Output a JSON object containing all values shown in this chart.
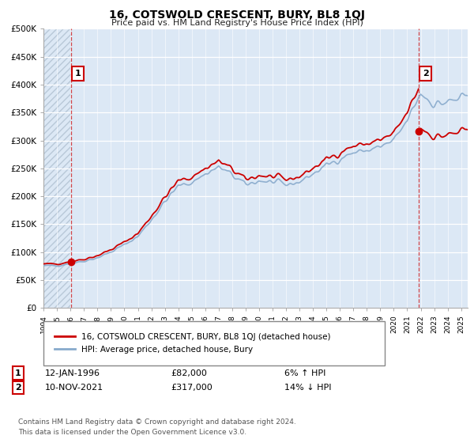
{
  "title": "16, COTSWOLD CRESCENT, BURY, BL8 1QJ",
  "subtitle": "Price paid vs. HM Land Registry's House Price Index (HPI)",
  "legend_line1": "16, COTSWOLD CRESCENT, BURY, BL8 1QJ (detached house)",
  "legend_line2": "HPI: Average price, detached house, Bury",
  "annotation1_label": "1",
  "annotation1_date": "12-JAN-1996",
  "annotation1_price": "£82,000",
  "annotation1_hpi": "6% ↑ HPI",
  "annotation2_label": "2",
  "annotation2_date": "10-NOV-2021",
  "annotation2_price": "£317,000",
  "annotation2_hpi": "14% ↓ HPI",
  "footer": "Contains HM Land Registry data © Crown copyright and database right 2024.\nThis data is licensed under the Open Government Licence v3.0.",
  "ylim": [
    0,
    500000
  ],
  "yticks": [
    0,
    50000,
    100000,
    150000,
    200000,
    250000,
    300000,
    350000,
    400000,
    450000,
    500000
  ],
  "ytick_labels": [
    "£0",
    "£50K",
    "£100K",
    "£150K",
    "£200K",
    "£250K",
    "£300K",
    "£350K",
    "£400K",
    "£450K",
    "£500K"
  ],
  "price_color": "#cc0000",
  "hpi_color": "#88aacc",
  "background_color": "#dce8f5",
  "hatch_color": "#b8c8d8",
  "grid_color": "#ffffff",
  "annotation_box_color": "#cc0000",
  "sale1_year": 1996.04,
  "sale1_price": 82000,
  "sale2_year": 2021.86,
  "sale2_price": 317000,
  "xmin": 1994.0,
  "xmax": 2025.5
}
